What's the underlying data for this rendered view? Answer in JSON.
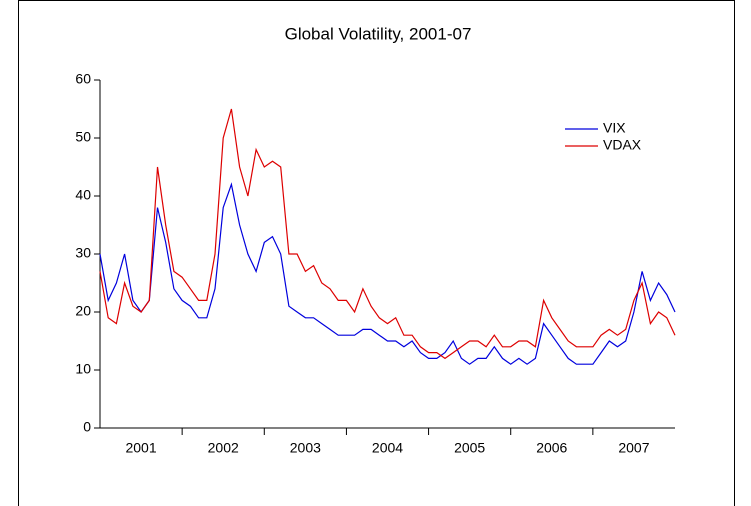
{
  "chart_data": {
    "type": "line",
    "title": "Global Volatility, 2001-07",
    "categories": [
      "2001",
      "2002",
      "2003",
      "2004",
      "2005",
      "2006",
      "2007"
    ],
    "x": [
      2001.0,
      2001.1,
      2001.2,
      2001.3,
      2001.4,
      2001.5,
      2001.6,
      2001.7,
      2001.8,
      2001.9,
      2002.0,
      2002.1,
      2002.2,
      2002.3,
      2002.4,
      2002.5,
      2002.6,
      2002.7,
      2002.8,
      2002.9,
      2003.0,
      2003.1,
      2003.2,
      2003.3,
      2003.4,
      2003.5,
      2003.6,
      2003.7,
      2003.8,
      2003.9,
      2004.0,
      2004.1,
      2004.2,
      2004.3,
      2004.4,
      2004.5,
      2004.6,
      2004.7,
      2004.8,
      2004.9,
      2005.0,
      2005.1,
      2005.2,
      2005.3,
      2005.4,
      2005.5,
      2005.6,
      2005.7,
      2005.8,
      2005.9,
      2006.0,
      2006.1,
      2006.2,
      2006.3,
      2006.4,
      2006.5,
      2006.6,
      2006.7,
      2006.8,
      2006.9,
      2007.0,
      2007.1,
      2007.2,
      2007.3,
      2007.4,
      2007.5,
      2007.6,
      2007.7,
      2007.8,
      2007.9,
      2008.0
    ],
    "xlim": [
      2001,
      2008
    ],
    "ylim": [
      0,
      60
    ],
    "yticks": [
      0,
      10,
      20,
      30,
      40,
      50,
      60
    ],
    "legend": "upper right",
    "series": [
      {
        "name": "VIX",
        "color": "#0000dd",
        "values": [
          30,
          22,
          25,
          30,
          22,
          20,
          22,
          38,
          32,
          24,
          22,
          21,
          19,
          19,
          24,
          38,
          42,
          35,
          30,
          27,
          32,
          33,
          30,
          21,
          20,
          19,
          19,
          18,
          17,
          16,
          16,
          16,
          17,
          17,
          16,
          15,
          15,
          14,
          15,
          13,
          12,
          12,
          13,
          15,
          12,
          11,
          12,
          12,
          14,
          12,
          11,
          12,
          11,
          12,
          18,
          16,
          14,
          12,
          11,
          11,
          11,
          13,
          15,
          14,
          15,
          20,
          27,
          22,
          25,
          23,
          20
        ]
      },
      {
        "name": "VDAX",
        "color": "#dd0000",
        "values": [
          27,
          19,
          18,
          25,
          21,
          20,
          22,
          45,
          35,
          27,
          26,
          24,
          22,
          22,
          30,
          50,
          55,
          45,
          40,
          48,
          45,
          46,
          45,
          30,
          30,
          27,
          28,
          25,
          24,
          22,
          22,
          20,
          24,
          21,
          19,
          18,
          19,
          16,
          16,
          14,
          13,
          13,
          12,
          13,
          14,
          15,
          15,
          14,
          16,
          14,
          14,
          15,
          15,
          14,
          22,
          19,
          17,
          15,
          14,
          14,
          14,
          16,
          17,
          16,
          17,
          22,
          25,
          18,
          20,
          19,
          16
        ]
      }
    ]
  }
}
